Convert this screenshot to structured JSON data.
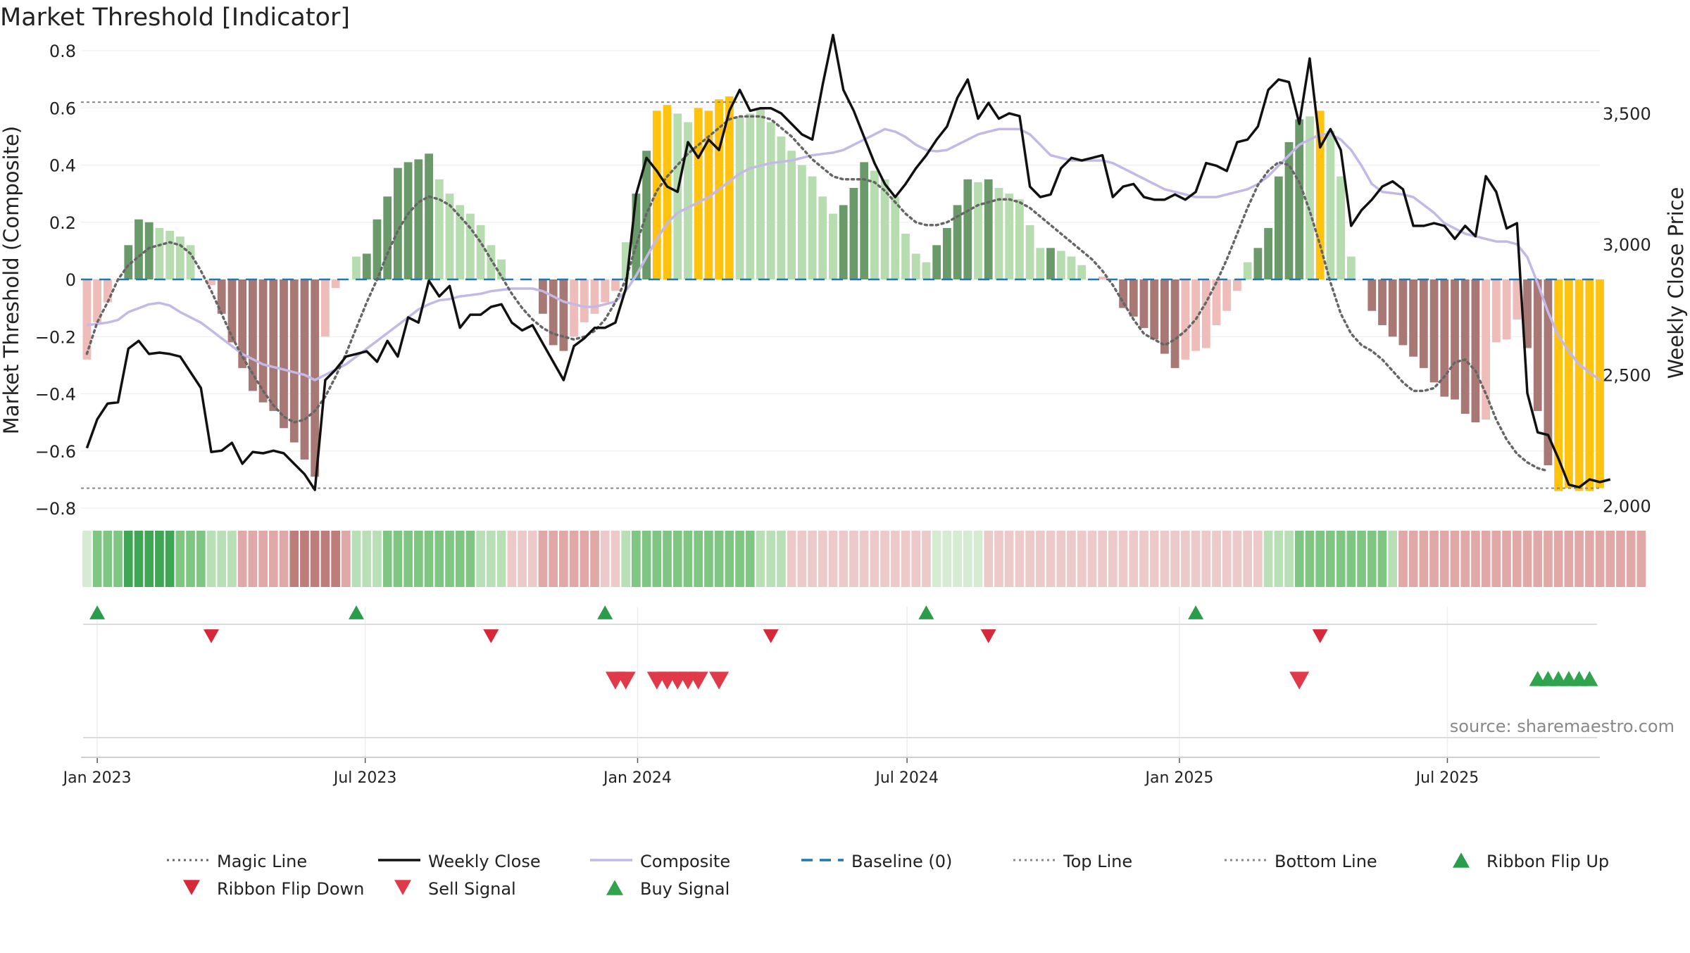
{
  "chart_data": {
    "type": "bar",
    "title": "Market Threshold [Indicator]",
    "ylabel_left": "Market Threshold (Composite)",
    "ylabel_right": "Weekly Close Price",
    "source": "source: sharemaestro.com",
    "x_ticks": [
      {
        "date": "2023-01-01",
        "label": "Jan 2023"
      },
      {
        "date": "2023-07-01",
        "label": "Jul 2023"
      },
      {
        "date": "2024-01-01",
        "label": "Jan 2024"
      },
      {
        "date": "2024-07-01",
        "label": "Jul 2024"
      },
      {
        "date": "2025-01-01",
        "label": "Jan 2025"
      },
      {
        "date": "2025-07-01",
        "label": "Jul 2025"
      }
    ],
    "x_range": [
      "2022-12-21",
      "2025-10-12"
    ],
    "left_axis": {
      "range": [
        -0.8,
        0.8
      ],
      "ticks": [
        {
          "v": 0.8,
          "label": "0.8"
        },
        {
          "v": 0.6,
          "label": "0.6"
        },
        {
          "v": 0.4,
          "label": "0.4"
        },
        {
          "v": 0.2,
          "label": "0.2"
        },
        {
          "v": 0,
          "label": "0"
        },
        {
          "v": -0.2,
          "label": "−0.2"
        },
        {
          "v": -0.4,
          "label": "−0.4"
        },
        {
          "v": -0.6,
          "label": "−0.6"
        },
        {
          "v": -0.8,
          "label": "−0.8"
        }
      ]
    },
    "right_axis": {
      "range": [
        1990,
        3740
      ],
      "ticks": [
        {
          "v": 3500,
          "label": "3,500"
        },
        {
          "v": 3000,
          "label": "3,000"
        },
        {
          "v": 2500,
          "label": "2,500"
        },
        {
          "v": 2000,
          "label": "2,000"
        }
      ]
    },
    "top_line": 0.62,
    "bottom_line": -0.73,
    "baseline": 0,
    "week_start": "2022-12-25",
    "series": [
      {
        "name": "Composite Bars",
        "values": [
          -0.28,
          -0.15,
          -0.08,
          0,
          0.12,
          0.21,
          0.2,
          0.18,
          0.17,
          0.15,
          0.12,
          0,
          -0.02,
          -0.12,
          -0.22,
          -0.31,
          -0.39,
          -0.43,
          -0.46,
          -0.52,
          -0.57,
          -0.63,
          -0.69,
          -0.2,
          -0.03,
          0,
          0.08,
          0.09,
          0.21,
          0.29,
          0.39,
          0.41,
          0.42,
          0.44,
          0.35,
          0.3,
          0.26,
          0.23,
          0.19,
          0.12,
          0.07,
          0,
          0,
          0,
          -0.12,
          -0.23,
          -0.25,
          -0.2,
          -0.15,
          -0.12,
          -0.08,
          -0.04,
          0.13,
          0.3,
          0.45,
          0.59,
          0.61,
          0.58,
          0.55,
          0.6,
          0.59,
          0.63,
          0.64,
          0.57,
          0.58,
          0.6,
          0.55,
          0.5,
          0.45,
          0.4,
          0.36,
          0.29,
          0.23,
          0.26,
          0.32,
          0.41,
          0.38,
          0.35,
          0.29,
          0.16,
          0.09,
          0.06,
          0.12,
          0.18,
          0.26,
          0.35,
          0.34,
          0.35,
          0.32,
          0.3,
          0.28,
          0.19,
          0.11,
          0.11,
          0.1,
          0.08,
          0.05,
          0,
          0.01,
          0,
          -0.1,
          -0.13,
          -0.17,
          -0.21,
          -0.26,
          -0.31,
          -0.28,
          -0.25,
          -0.24,
          -0.16,
          -0.11,
          -0.04,
          0.06,
          0.11,
          0.18,
          0.36,
          0.48,
          0.56,
          0.57,
          0.59,
          0.52,
          0.36,
          0.08,
          0,
          -0.11,
          -0.16,
          -0.2,
          -0.23,
          -0.27,
          -0.31,
          -0.36,
          -0.41,
          -0.42,
          -0.47,
          -0.5,
          -0.49,
          -0.22,
          -0.21,
          -0.14,
          -0.24,
          -0.46,
          -0.65,
          -0.74,
          -0.73,
          -0.74,
          -0.74,
          -0.73
        ],
        "bar_class": [
          0,
          0,
          0,
          0,
          1,
          1,
          1,
          2,
          2,
          2,
          2,
          0,
          0,
          3,
          3,
          3,
          3,
          3,
          3,
          3,
          3,
          3,
          3,
          0,
          0,
          0,
          2,
          1,
          1,
          1,
          1,
          1,
          1,
          1,
          2,
          2,
          2,
          2,
          2,
          2,
          2,
          0,
          0,
          0,
          3,
          3,
          3,
          0,
          0,
          0,
          0,
          0,
          2,
          1,
          1,
          4,
          4,
          2,
          2,
          4,
          4,
          4,
          4,
          2,
          2,
          2,
          2,
          2,
          2,
          2,
          2,
          2,
          2,
          1,
          1,
          1,
          2,
          2,
          2,
          2,
          2,
          2,
          1,
          1,
          1,
          1,
          2,
          1,
          2,
          2,
          2,
          2,
          2,
          1,
          2,
          2,
          2,
          2,
          0,
          0,
          3,
          3,
          3,
          3,
          3,
          3,
          0,
          0,
          0,
          0,
          0,
          0,
          2,
          1,
          1,
          1,
          1,
          1,
          2,
          4,
          2,
          2,
          2,
          0,
          3,
          3,
          3,
          3,
          3,
          3,
          3,
          3,
          3,
          3,
          3,
          0,
          0,
          0,
          0,
          3,
          3,
          3,
          4,
          4,
          4,
          4,
          4,
          4
        ]
      },
      {
        "name": "Weekly Close",
        "values": [
          2220,
          2330,
          2390,
          2395,
          2600,
          2630,
          2580,
          2585,
          2580,
          2570,
          2510,
          2450,
          2205,
          2210,
          2240,
          2160,
          2205,
          2200,
          2210,
          2200,
          2160,
          2120,
          2060,
          2480,
          2520,
          2570,
          2580,
          2590,
          2550,
          2630,
          2570,
          2720,
          2700,
          2860,
          2800,
          2840,
          2680,
          2730,
          2730,
          2760,
          2770,
          2700,
          2670,
          2690,
          2620,
          2550,
          2480,
          2610,
          2640,
          2680,
          2680,
          2700,
          2830,
          3190,
          3330,
          3280,
          3220,
          3200,
          3390,
          3330,
          3400,
          3360,
          3510,
          3590,
          3510,
          3520,
          3520,
          3500,
          3460,
          3420,
          3400,
          3610,
          3800,
          3590,
          3510,
          3410,
          3310,
          3230,
          3180,
          3230,
          3290,
          3340,
          3400,
          3450,
          3560,
          3630,
          3480,
          3540,
          3480,
          3500,
          3490,
          3220,
          3180,
          3190,
          3290,
          3330,
          3320,
          3330,
          3340,
          3180,
          3220,
          3230,
          3180,
          3170,
          3170,
          3190,
          3170,
          3200,
          3310,
          3300,
          3280,
          3390,
          3400,
          3450,
          3590,
          3630,
          3620,
          3460,
          3710,
          3370,
          3440,
          3360,
          3070,
          3130,
          3170,
          3220,
          3240,
          3210,
          3070,
          3070,
          3080,
          3070,
          3020,
          3070,
          3030,
          3260,
          3200,
          3060,
          3080,
          2430,
          2280,
          2270,
          2180,
          2080,
          2070,
          2100,
          2090,
          2100
        ]
      },
      {
        "name": "Composite",
        "values": [
          2690,
          2695,
          2700,
          2710,
          2740,
          2755,
          2770,
          2775,
          2765,
          2740,
          2720,
          2700,
          2670,
          2640,
          2610,
          2580,
          2560,
          2540,
          2530,
          2520,
          2510,
          2500,
          2480,
          2500,
          2520,
          2540,
          2570,
          2600,
          2630,
          2660,
          2690,
          2720,
          2750,
          2770,
          2785,
          2790,
          2800,
          2805,
          2810,
          2820,
          2825,
          2830,
          2830,
          2830,
          2820,
          2800,
          2780,
          2770,
          2760,
          2760,
          2770,
          2780,
          2820,
          2880,
          2950,
          3020,
          3080,
          3120,
          3140,
          3160,
          3180,
          3210,
          3240,
          3270,
          3290,
          3300,
          3310,
          3315,
          3320,
          3330,
          3340,
          3345,
          3350,
          3360,
          3380,
          3400,
          3420,
          3440,
          3430,
          3410,
          3380,
          3360,
          3355,
          3360,
          3380,
          3400,
          3420,
          3430,
          3440,
          3440,
          3440,
          3420,
          3380,
          3340,
          3330,
          3320,
          3320,
          3320,
          3320,
          3310,
          3290,
          3270,
          3250,
          3230,
          3210,
          3200,
          3190,
          3180,
          3180,
          3180,
          3190,
          3200,
          3210,
          3230,
          3260,
          3300,
          3340,
          3380,
          3400,
          3420,
          3420,
          3400,
          3360,
          3300,
          3230,
          3200,
          3195,
          3190,
          3180,
          3150,
          3120,
          3080,
          3060,
          3040,
          3030,
          3020,
          3010,
          3010,
          3000,
          2950,
          2850,
          2740,
          2650,
          2590,
          2540,
          2510,
          2480
        ]
      },
      {
        "name": "Magic Line",
        "values": [
          -0.26,
          -0.15,
          -0.08,
          0,
          0.05,
          0.08,
          0.11,
          0.12,
          0.13,
          0.12,
          0.09,
          0.03,
          -0.04,
          -0.12,
          -0.2,
          -0.27,
          -0.33,
          -0.39,
          -0.44,
          -0.48,
          -0.5,
          -0.49,
          -0.46,
          -0.41,
          -0.34,
          -0.26,
          -0.17,
          -0.08,
          0,
          0.09,
          0.17,
          0.23,
          0.27,
          0.29,
          0.28,
          0.26,
          0.22,
          0.18,
          0.13,
          0.07,
          0.01,
          -0.05,
          -0.1,
          -0.14,
          -0.17,
          -0.19,
          -0.2,
          -0.21,
          -0.2,
          -0.18,
          -0.14,
          -0.08,
          0,
          0.12,
          0.23,
          0.31,
          0.36,
          0.4,
          0.44,
          0.47,
          0.5,
          0.53,
          0.56,
          0.57,
          0.57,
          0.57,
          0.56,
          0.53,
          0.5,
          0.46,
          0.42,
          0.39,
          0.36,
          0.35,
          0.35,
          0.35,
          0.34,
          0.31,
          0.27,
          0.23,
          0.2,
          0.19,
          0.19,
          0.2,
          0.22,
          0.24,
          0.26,
          0.27,
          0.28,
          0.28,
          0.27,
          0.25,
          0.22,
          0.19,
          0.16,
          0.13,
          0.1,
          0.07,
          0.03,
          -0.02,
          -0.08,
          -0.14,
          -0.19,
          -0.21,
          -0.23,
          -0.21,
          -0.18,
          -0.14,
          -0.08,
          -0.01,
          0.07,
          0.16,
          0.25,
          0.33,
          0.38,
          0.41,
          0.4,
          0.34,
          0.24,
          0.12,
          -0.01,
          -0.12,
          -0.19,
          -0.23,
          -0.25,
          -0.28,
          -0.32,
          -0.36,
          -0.39,
          -0.39,
          -0.38,
          -0.34,
          -0.29,
          -0.28,
          -0.32,
          -0.4,
          -0.49,
          -0.56,
          -0.61,
          -0.64,
          -0.66,
          -0.67
        ]
      }
    ],
    "ribbon_weeks": [
      0,
      2,
      2,
      2,
      3,
      3,
      3,
      3,
      3,
      2,
      2,
      2,
      1,
      1,
      1,
      -2,
      -2,
      -2,
      -2,
      -2,
      -3,
      -3,
      -3,
      -3,
      -3,
      -2,
      1,
      1,
      1,
      2,
      2,
      2,
      2,
      2,
      2,
      2,
      2,
      2,
      1,
      1,
      1,
      -1,
      -1,
      -1,
      -2,
      -2,
      -2,
      -2,
      -2,
      -2,
      -1,
      -1,
      1,
      2,
      2,
      2,
      2,
      2,
      2,
      2,
      2,
      2,
      2,
      2,
      2,
      1,
      1,
      1,
      -1,
      -1,
      -1,
      -1,
      -1,
      -1,
      -1,
      -1,
      -1,
      -1,
      -1,
      -1,
      -1,
      -1,
      0,
      0,
      0,
      0,
      0,
      -1,
      -1,
      -1,
      -1,
      -1,
      -1,
      -1,
      -1,
      -1,
      -1,
      -1,
      -1,
      -1,
      -1,
      -1,
      -1,
      -1,
      -1,
      -1,
      -1,
      -1,
      -1,
      -1,
      -1,
      -1,
      -1,
      -1,
      1,
      1,
      1,
      2,
      2,
      2,
      2,
      2,
      2,
      2,
      2,
      2,
      1,
      -2,
      -2,
      -2,
      -2,
      -2,
      -2,
      -2,
      -2,
      -2,
      -2,
      -2,
      -2,
      -2,
      -2,
      -2,
      -2,
      -2,
      -2,
      -2,
      -2,
      -2,
      -2,
      -2,
      -2
    ],
    "ribbon_flip_up": [
      "2023-01-01",
      "2023-06-25",
      "2023-12-10",
      "2024-07-14",
      "2025-01-12"
    ],
    "ribbon_flip_down": [
      "2023-03-19",
      "2023-09-24",
      "2024-03-31",
      "2024-08-25",
      "2025-04-06"
    ],
    "sell_signals": [
      "2023-12-17",
      "2023-12-24",
      "2024-01-14",
      "2024-01-21",
      "2024-01-28",
      "2024-02-04",
      "2024-02-11",
      "2024-02-25",
      "2025-03-23"
    ],
    "buy_signals": [
      "2025-08-31",
      "2025-09-07",
      "2025-09-14",
      "2025-09-21",
      "2025-09-28",
      "2025-10-05"
    ],
    "legend": [
      {
        "label": "Magic Line",
        "kind": "dotted",
        "color": "#666666"
      },
      {
        "label": "Weekly Close",
        "kind": "solid",
        "color": "#111111"
      },
      {
        "label": "Composite",
        "kind": "solid",
        "color": "#c4b9e6"
      },
      {
        "label": "Baseline (0)",
        "kind": "dashed",
        "color": "#1f77b4"
      },
      {
        "label": "Top Line",
        "kind": "dotted",
        "color": "#888888"
      },
      {
        "label": "Bottom Line",
        "kind": "dotted",
        "color": "#888888"
      },
      {
        "label": "Ribbon Flip Up",
        "kind": "tri-up",
        "color": "#2a9d4a"
      },
      {
        "label": "Ribbon Flip Down",
        "kind": "tri-down",
        "color": "#d62839"
      },
      {
        "label": "Sell Signal",
        "kind": "tri-down",
        "color": "#e03a4a"
      },
      {
        "label": "Buy Signal",
        "kind": "tri-up",
        "color": "#2fa34e"
      }
    ],
    "colors": {
      "bar_weak_neg": "#eebcb9",
      "bar_strong_pos": "#6a9a6a",
      "bar_weak_pos": "#b6dcb0",
      "bar_strong_neg": "#a87874",
      "bar_extreme": "#ffc20e"
    }
  }
}
